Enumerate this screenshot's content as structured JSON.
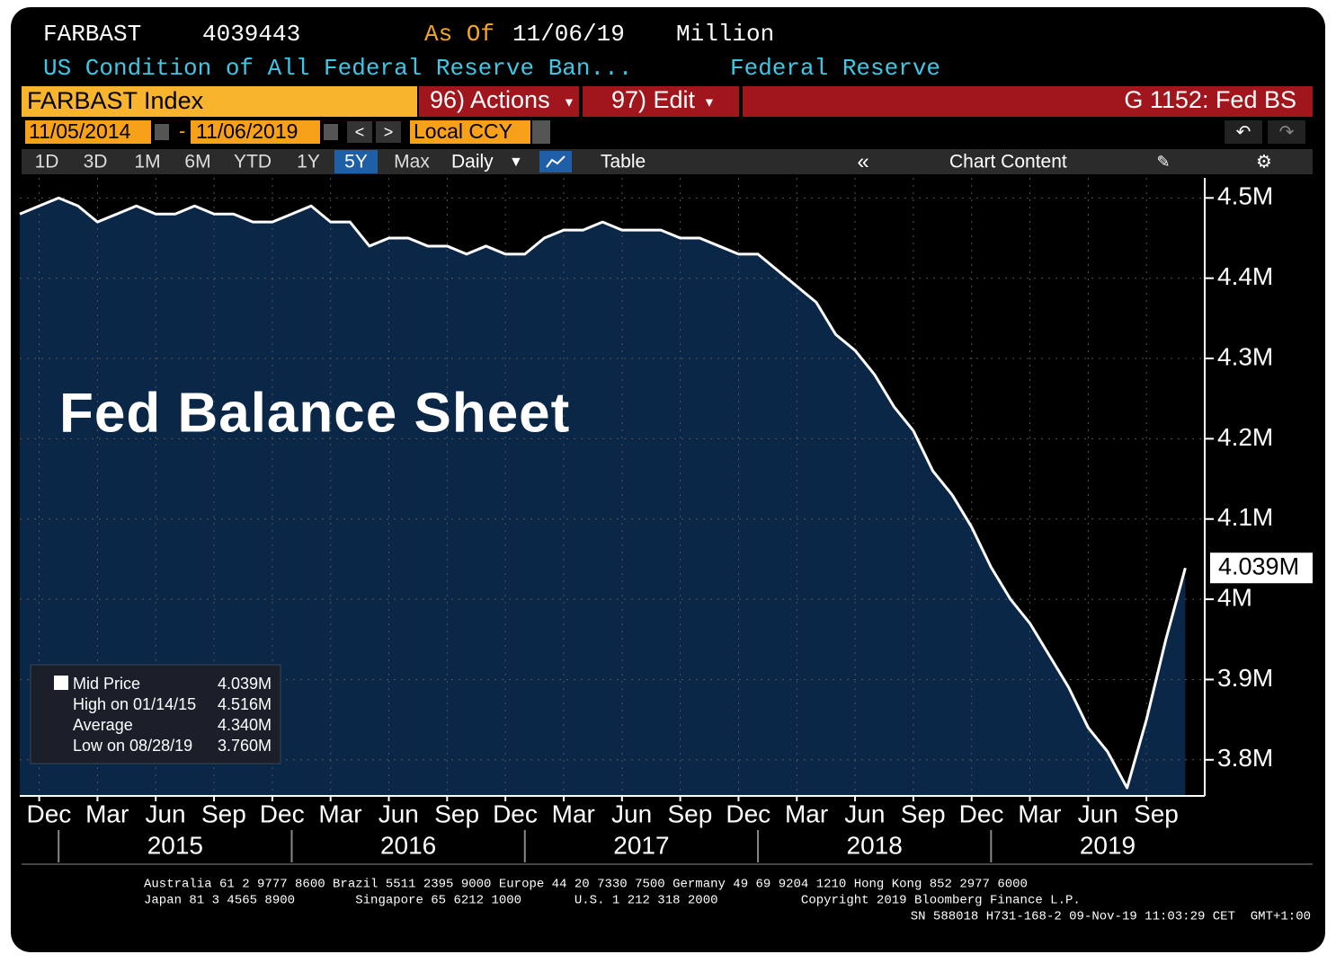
{
  "header": {
    "ticker": "FARBAST",
    "value": 4039443,
    "asof_label": "As Of",
    "asof_date": "11/06/19",
    "unit": "Million",
    "description": "US Condition of All Federal Reserve Ban...",
    "source": "Federal Reserve"
  },
  "toolbar": {
    "security": "FARBAST Index",
    "actions": "96) Actions",
    "edit": "97) Edit",
    "page": "G 1152: Fed BS",
    "start_date": "11/05/2014",
    "end_date": "11/06/2019",
    "currency": "Local CCY",
    "ranges": [
      "1D",
      "3D",
      "1M",
      "6M",
      "YTD",
      "1Y",
      "5Y",
      "Max"
    ],
    "active_range": "5Y",
    "frequency": "Daily",
    "table": "Table",
    "chart_content": "Chart Content"
  },
  "chart_data": {
    "type": "area",
    "annotation": "Fed Balance Sheet",
    "color": "#ffffff",
    "fill": "#0b2748",
    "x": [
      "2014-11",
      "2014-12",
      "2015-01",
      "2015-02",
      "2015-03",
      "2015-04",
      "2015-05",
      "2015-06",
      "2015-07",
      "2015-08",
      "2015-09",
      "2015-10",
      "2015-11",
      "2015-12",
      "2016-01",
      "2016-02",
      "2016-03",
      "2016-04",
      "2016-05",
      "2016-06",
      "2016-07",
      "2016-08",
      "2016-09",
      "2016-10",
      "2016-11",
      "2016-12",
      "2017-01",
      "2017-02",
      "2017-03",
      "2017-04",
      "2017-05",
      "2017-06",
      "2017-07",
      "2017-08",
      "2017-09",
      "2017-10",
      "2017-11",
      "2017-12",
      "2018-01",
      "2018-02",
      "2018-03",
      "2018-04",
      "2018-05",
      "2018-06",
      "2018-07",
      "2018-08",
      "2018-09",
      "2018-10",
      "2018-11",
      "2018-12",
      "2019-01",
      "2019-02",
      "2019-03",
      "2019-04",
      "2019-05",
      "2019-06",
      "2019-07",
      "2019-08",
      "2019-09",
      "2019-10",
      "2019-11"
    ],
    "values": [
      4.48,
      4.49,
      4.5,
      4.49,
      4.47,
      4.48,
      4.49,
      4.48,
      4.48,
      4.49,
      4.48,
      4.48,
      4.47,
      4.47,
      4.48,
      4.49,
      4.47,
      4.47,
      4.44,
      4.45,
      4.45,
      4.44,
      4.44,
      4.43,
      4.44,
      4.43,
      4.43,
      4.45,
      4.46,
      4.46,
      4.47,
      4.46,
      4.46,
      4.46,
      4.45,
      4.45,
      4.44,
      4.43,
      4.43,
      4.41,
      4.39,
      4.37,
      4.33,
      4.31,
      4.28,
      4.24,
      4.21,
      4.16,
      4.13,
      4.09,
      4.04,
      4.0,
      3.97,
      3.93,
      3.89,
      3.84,
      3.81,
      3.765,
      3.85,
      3.95,
      4.039
    ],
    "last_label": "4.039M",
    "xlim": [
      "2014-11",
      "2019-12"
    ],
    "xticks": [
      {
        "value": "2014-12",
        "label": "Dec"
      },
      {
        "value": "2015-03",
        "label": "Mar"
      },
      {
        "value": "2015-06",
        "label": "Jun"
      },
      {
        "value": "2015-09",
        "label": "Sep"
      },
      {
        "value": "2015-12",
        "label": "Dec"
      },
      {
        "value": "2016-03",
        "label": "Mar"
      },
      {
        "value": "2016-06",
        "label": "Jun"
      },
      {
        "value": "2016-09",
        "label": "Sep"
      },
      {
        "value": "2016-12",
        "label": "Dec"
      },
      {
        "value": "2017-03",
        "label": "Mar"
      },
      {
        "value": "2017-06",
        "label": "Jun"
      },
      {
        "value": "2017-09",
        "label": "Sep"
      },
      {
        "value": "2017-12",
        "label": "Dec"
      },
      {
        "value": "2018-03",
        "label": "Mar"
      },
      {
        "value": "2018-06",
        "label": "Jun"
      },
      {
        "value": "2018-09",
        "label": "Sep"
      },
      {
        "value": "2018-12",
        "label": "Dec"
      },
      {
        "value": "2019-03",
        "label": "Mar"
      },
      {
        "value": "2019-06",
        "label": "Jun"
      },
      {
        "value": "2019-09",
        "label": "Sep"
      }
    ],
    "years": [
      "2015",
      "2016",
      "2017",
      "2018",
      "2019"
    ],
    "ylim": [
      3.755,
      4.525
    ],
    "yticks": [
      {
        "value": 3.8,
        "label": "3.8M"
      },
      {
        "value": 3.9,
        "label": "3.9M"
      },
      {
        "value": 4,
        "label": "4M"
      },
      {
        "value": 4.1,
        "label": "4.1M"
      },
      {
        "value": 4.2,
        "label": "4.2M"
      },
      {
        "value": 4.3,
        "label": "4.3M"
      },
      {
        "value": 4.4,
        "label": "4.4M"
      },
      {
        "value": 4.5,
        "label": "4.5M"
      }
    ],
    "grid": true,
    "y_axis_side": "right",
    "stats": [
      {
        "name": "Mid Price",
        "value": 4.039,
        "value_label": "4.039M"
      },
      {
        "name": "High on 01/14/15",
        "value": 4.516,
        "value_label": "4.516M"
      },
      {
        "name": "Average",
        "value": 4.34,
        "value_label": "4.340M"
      },
      {
        "name": "Low on 08/28/19",
        "value": 3.76,
        "value_label": "3.760M"
      }
    ]
  },
  "footer": [
    "Australia 61 2 9777 8600 Brazil 5511 2395 9000 Europe 44 20 7330 7500 Germany 49 69 9204 1210 Hong Kong 852 2977 6000",
    "Japan 81 3 4565 8900        Singapore 65 6212 1000       U.S. 1 212 318 2000           Copyright 2019 Bloomberg Finance L.P.",
    "SN 588018 H731-168-2 09-Nov-19 11:03:29 CET  GMT+1:00"
  ]
}
